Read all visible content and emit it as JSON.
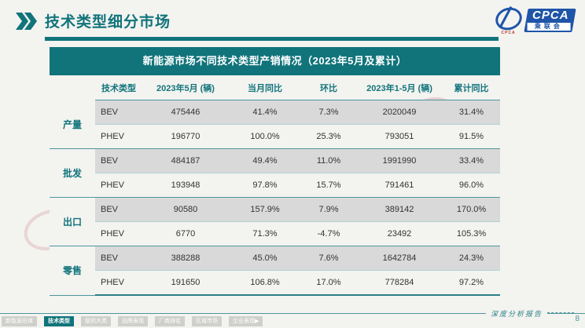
{
  "page": {
    "title": "技术类型细分市场"
  },
  "logo": {
    "emblem_caption": "CPCA",
    "box_text": "CPCA",
    "box_sub": "乘联会"
  },
  "table": {
    "title": "新能源市场不同技术类型产销情况（2023年5月及累计）",
    "columns": [
      "技术类型",
      "2023年5月 (辆)",
      "当月同比",
      "环比",
      "2023年1-5月 (辆)",
      "累计同比"
    ],
    "groups": [
      {
        "label": "产量",
        "rows": [
          {
            "tech": "BEV",
            "may": "475446",
            "yoy": "41.4%",
            "mom": "7.3%",
            "ytd": "2020049",
            "cum": "31.4%"
          },
          {
            "tech": "PHEV",
            "may": "196770",
            "yoy": "100.0%",
            "mom": "25.3%",
            "ytd": "793051",
            "cum": "91.5%"
          }
        ]
      },
      {
        "label": "批发",
        "rows": [
          {
            "tech": "BEV",
            "may": "484187",
            "yoy": "49.4%",
            "mom": "11.0%",
            "ytd": "1991990",
            "cum": "33.4%"
          },
          {
            "tech": "PHEV",
            "may": "193948",
            "yoy": "97.8%",
            "mom": "15.7%",
            "ytd": "791461",
            "cum": "96.0%"
          }
        ]
      },
      {
        "label": "出口",
        "rows": [
          {
            "tech": "BEV",
            "may": "90580",
            "yoy": "157.9%",
            "mom": "7.9%",
            "ytd": "389142",
            "cum": "170.0%"
          },
          {
            "tech": "PHEV",
            "may": "6770",
            "yoy": "71.3%",
            "mom": "-4.7%",
            "ytd": "23492",
            "cum": "105.3%"
          }
        ]
      },
      {
        "label": "零售",
        "rows": [
          {
            "tech": "BEV",
            "may": "388288",
            "yoy": "45.0%",
            "mom": "7.6%",
            "ytd": "1642784",
            "cum": "24.3%"
          },
          {
            "tech": "PHEV",
            "may": "191650",
            "yoy": "106.8%",
            "mom": "17.0%",
            "ytd": "778284",
            "cum": "97.2%"
          }
        ]
      }
    ]
  },
  "footer": {
    "note": "深度分析报告",
    "page_number": "8",
    "tabs": [
      {
        "label": "新能源总体",
        "active": false
      },
      {
        "label": "技术类型",
        "active": true
      },
      {
        "label": "级别大类",
        "active": false
      },
      {
        "label": "品牌表现",
        "active": false
      },
      {
        "label": "厂商排名",
        "active": false
      },
      {
        "label": "区域市场",
        "active": false
      },
      {
        "label": "企业表现▶",
        "active": false
      }
    ]
  },
  "colors": {
    "teal": "#11747b",
    "teal_line": "#4d979c",
    "row_gray": "#d9d9d9",
    "row_light": "#f3f3f0",
    "logo_blue": "#1e55a8"
  }
}
